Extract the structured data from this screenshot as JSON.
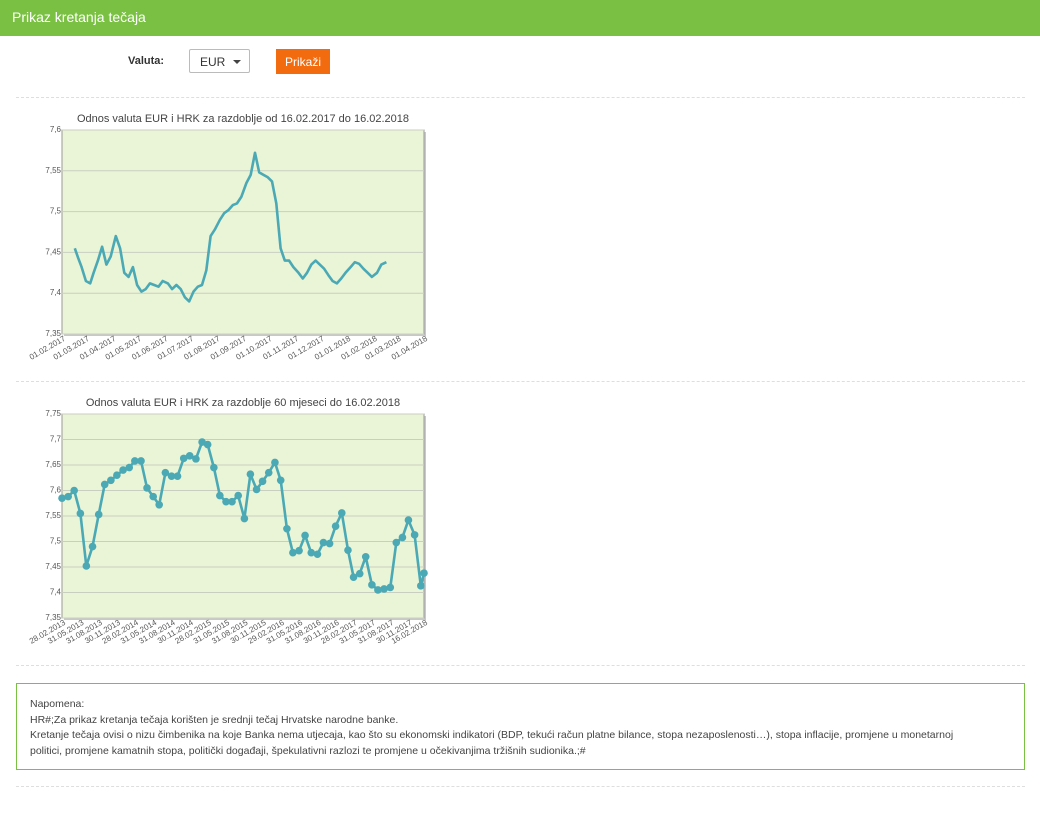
{
  "header": {
    "title": "Prikaz kretanja tečaja"
  },
  "form": {
    "currency_label": "Valuta:",
    "currency_value": "EUR",
    "show_button": "Prikaži"
  },
  "colors": {
    "header": "#7ac143",
    "button": "#f26b0f",
    "plot_background": "#eaf4d6",
    "series_line": "#4aa9b5",
    "note_border": "#7ac143"
  },
  "chart_data": [
    {
      "type": "line",
      "title": "Odnos valuta EUR i HRK za razdoblje od 16.02.2017 do 16.02.2018",
      "xlabel": "",
      "ylabel": "",
      "xlim": [
        "2017-02-01",
        "2018-04-01"
      ],
      "ylim": [
        7.35,
        7.6
      ],
      "grid": true,
      "markers": false,
      "y_ticks": [
        "7,35",
        "7,4",
        "7,45",
        "7,5",
        "7,55",
        "7,6"
      ],
      "x_ticks": [
        "01.02.2017",
        "01.03.2017",
        "01.04.2017",
        "01.05.2017",
        "01.06.2017",
        "01.07.2017",
        "01.08.2017",
        "01.09.2017",
        "01.10.2017",
        "01.11.2017",
        "01.12.2017",
        "01.01.2018",
        "01.02.2018",
        "01.03.2018",
        "01.04.2018"
      ],
      "series": [
        {
          "x": [
            "2017-02-16",
            "2017-02-20",
            "2017-02-24",
            "2017-03-01",
            "2017-03-06",
            "2017-03-10",
            "2017-03-15",
            "2017-03-20",
            "2017-03-25",
            "2017-03-30",
            "2017-04-05",
            "2017-04-10",
            "2017-04-15",
            "2017-04-20",
            "2017-04-25",
            "2017-04-30",
            "2017-05-05",
            "2017-05-10",
            "2017-05-15",
            "2017-05-20",
            "2017-05-25",
            "2017-05-30",
            "2017-06-05",
            "2017-06-10",
            "2017-06-15",
            "2017-06-20",
            "2017-06-25",
            "2017-06-30",
            "2017-07-05",
            "2017-07-10",
            "2017-07-15",
            "2017-07-20",
            "2017-07-25",
            "2017-07-30",
            "2017-08-05",
            "2017-08-10",
            "2017-08-15",
            "2017-08-20",
            "2017-08-25",
            "2017-08-30",
            "2017-09-05",
            "2017-09-10",
            "2017-09-15",
            "2017-09-20",
            "2017-09-25",
            "2017-09-30",
            "2017-10-05",
            "2017-10-10",
            "2017-10-15",
            "2017-10-20",
            "2017-10-25",
            "2017-10-30",
            "2017-11-05",
            "2017-11-10",
            "2017-11-15",
            "2017-11-20",
            "2017-11-25",
            "2017-11-30",
            "2017-12-05",
            "2017-12-10",
            "2017-12-15",
            "2017-12-20",
            "2017-12-25",
            "2017-12-30",
            "2018-01-05",
            "2018-01-10",
            "2018-01-15",
            "2018-01-20",
            "2018-01-25",
            "2018-01-30",
            "2018-02-05",
            "2018-02-10",
            "2018-02-16"
          ],
          "values": [
            7.455,
            7.443,
            7.432,
            7.415,
            7.412,
            7.425,
            7.44,
            7.457,
            7.435,
            7.445,
            7.47,
            7.455,
            7.425,
            7.42,
            7.432,
            7.41,
            7.402,
            7.405,
            7.412,
            7.41,
            7.408,
            7.415,
            7.412,
            7.405,
            7.41,
            7.405,
            7.395,
            7.39,
            7.402,
            7.408,
            7.41,
            7.428,
            7.47,
            7.478,
            7.49,
            7.498,
            7.502,
            7.508,
            7.51,
            7.518,
            7.535,
            7.545,
            7.572,
            7.548,
            7.545,
            7.542,
            7.537,
            7.51,
            7.455,
            7.44,
            7.44,
            7.432,
            7.425,
            7.418,
            7.425,
            7.435,
            7.44,
            7.435,
            7.43,
            7.422,
            7.415,
            7.412,
            7.418,
            7.425,
            7.432,
            7.438,
            7.436,
            7.43,
            7.425,
            7.42,
            7.425,
            7.435,
            7.438
          ]
        }
      ]
    },
    {
      "type": "line",
      "title": "Odnos valuta EUR i HRK za razdoblje 60 mjeseci do 16.02.2018",
      "xlabel": "",
      "ylabel": "",
      "ylim": [
        7.35,
        7.75
      ],
      "grid": true,
      "markers": true,
      "y_ticks": [
        "7,35",
        "7,4",
        "7,45",
        "7,5",
        "7,55",
        "7,6",
        "7,65",
        "7,7",
        "7,75"
      ],
      "x_ticks": [
        "28.02.2013",
        "31.05.2013",
        "31.08.2013",
        "30.11.2013",
        "28.02.2014",
        "31.05.2014",
        "31.08.2014",
        "30.11.2014",
        "28.02.2015",
        "31.05.2015",
        "31.08.2015",
        "30.11.2015",
        "29.02.2016",
        "31.05.2016",
        "31.08.2016",
        "30.11.2016",
        "28.02.2017",
        "31.05.2017",
        "31.08.2017",
        "30.11.2017",
        "16.02.2018"
      ],
      "series": [
        {
          "x": [
            "2013-02-28",
            "2013-03-31",
            "2013-04-30",
            "2013-05-31",
            "2013-06-30",
            "2013-07-31",
            "2013-08-31",
            "2013-09-30",
            "2013-10-31",
            "2013-11-30",
            "2013-12-31",
            "2014-01-31",
            "2014-02-28",
            "2014-03-31",
            "2014-04-30",
            "2014-05-31",
            "2014-06-30",
            "2014-07-31",
            "2014-08-31",
            "2014-09-30",
            "2014-10-31",
            "2014-11-30",
            "2014-12-31",
            "2015-01-31",
            "2015-02-28",
            "2015-03-31",
            "2015-04-30",
            "2015-05-31",
            "2015-06-30",
            "2015-07-31",
            "2015-08-31",
            "2015-09-30",
            "2015-10-31",
            "2015-11-30",
            "2015-12-31",
            "2016-01-31",
            "2016-02-29",
            "2016-03-31",
            "2016-04-30",
            "2016-05-31",
            "2016-06-30",
            "2016-07-31",
            "2016-08-31",
            "2016-09-30",
            "2016-10-31",
            "2016-11-30",
            "2016-12-31",
            "2017-01-31",
            "2017-02-28",
            "2017-03-31",
            "2017-04-30",
            "2017-05-31",
            "2017-06-30",
            "2017-07-31",
            "2017-08-31",
            "2017-09-30",
            "2017-10-31",
            "2017-11-30",
            "2017-12-31",
            "2018-01-31",
            "2018-02-16"
          ],
          "values": [
            7.585,
            7.588,
            7.6,
            7.555,
            7.452,
            7.49,
            7.553,
            7.612,
            7.62,
            7.63,
            7.64,
            7.645,
            7.658,
            7.658,
            7.605,
            7.588,
            7.572,
            7.635,
            7.628,
            7.628,
            7.663,
            7.668,
            7.662,
            7.695,
            7.69,
            7.645,
            7.59,
            7.578,
            7.578,
            7.59,
            7.545,
            7.632,
            7.602,
            7.618,
            7.635,
            7.655,
            7.62,
            7.525,
            7.478,
            7.482,
            7.512,
            7.478,
            7.475,
            7.498,
            7.496,
            7.53,
            7.556,
            7.483,
            7.43,
            7.437,
            7.47,
            7.415,
            7.405,
            7.407,
            7.41,
            7.498,
            7.508,
            7.542,
            7.513,
            7.413,
            7.438
          ]
        }
      ]
    }
  ],
  "note": {
    "heading": "Napomena:",
    "lines": [
      "HR#;Za prikaz kretanja tečaja korišten je srednji tečaj Hrvatske narodne banke.",
      "Kretanje tečaja ovisi o nizu čimbenika na koje Banka nema utjecaja, kao što su ekonomski indikatori (BDP, tekući račun platne bilance, stopa nezaposlenosti…), stopa inflacije, promjene u monetarnoj",
      "politici, promjene kamatnih stopa, politički događaji, špekulativni razlozi te promjene u očekivanjima tržišnih sudionika.;#"
    ]
  }
}
